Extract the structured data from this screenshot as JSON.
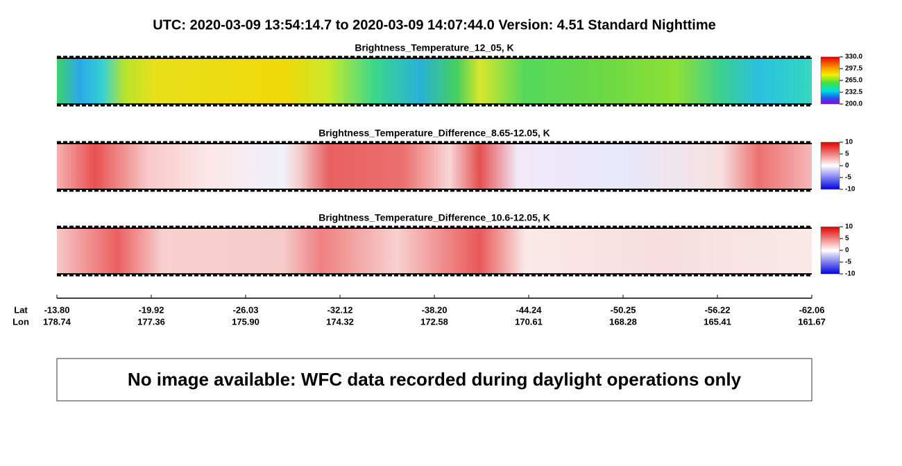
{
  "header": {
    "title": "UTC:  2020-03-09   13:54:14.7  to  2020-03-09   14:07:44.0    Version: 4.51  Standard Nighttime"
  },
  "panels": [
    {
      "title": "Brightness_Temperature_12_05, K",
      "colorbar_ticks": [
        "330.0",
        "297.5",
        "265.0",
        "232.5",
        "200.0"
      ]
    },
    {
      "title": "Brightness_Temperature_Difference_8.65-12.05, K",
      "colorbar_ticks": [
        "10",
        "5",
        "0",
        "-5",
        "-10"
      ]
    },
    {
      "title": "Brightness_Temperature_Difference_10.6-12.05, K",
      "colorbar_ticks": [
        "10",
        "5",
        "0",
        "-5",
        "-10"
      ]
    }
  ],
  "axis": {
    "lat_label": "Lat",
    "lon_label": "Lon",
    "ticks": [
      {
        "lat": "-13.80",
        "lon": "178.74"
      },
      {
        "lat": "-19.92",
        "lon": "177.36"
      },
      {
        "lat": "-26.03",
        "lon": "175.90"
      },
      {
        "lat": "-32.12",
        "lon": "174.32"
      },
      {
        "lat": "-38.20",
        "lon": "172.58"
      },
      {
        "lat": "-44.24",
        "lon": "170.61"
      },
      {
        "lat": "-50.25",
        "lon": "168.28"
      },
      {
        "lat": "-56.22",
        "lon": "165.41"
      },
      {
        "lat": "-62.06",
        "lon": "161.67"
      }
    ]
  },
  "note": "No image available: WFC data recorded during daylight operations only"
}
